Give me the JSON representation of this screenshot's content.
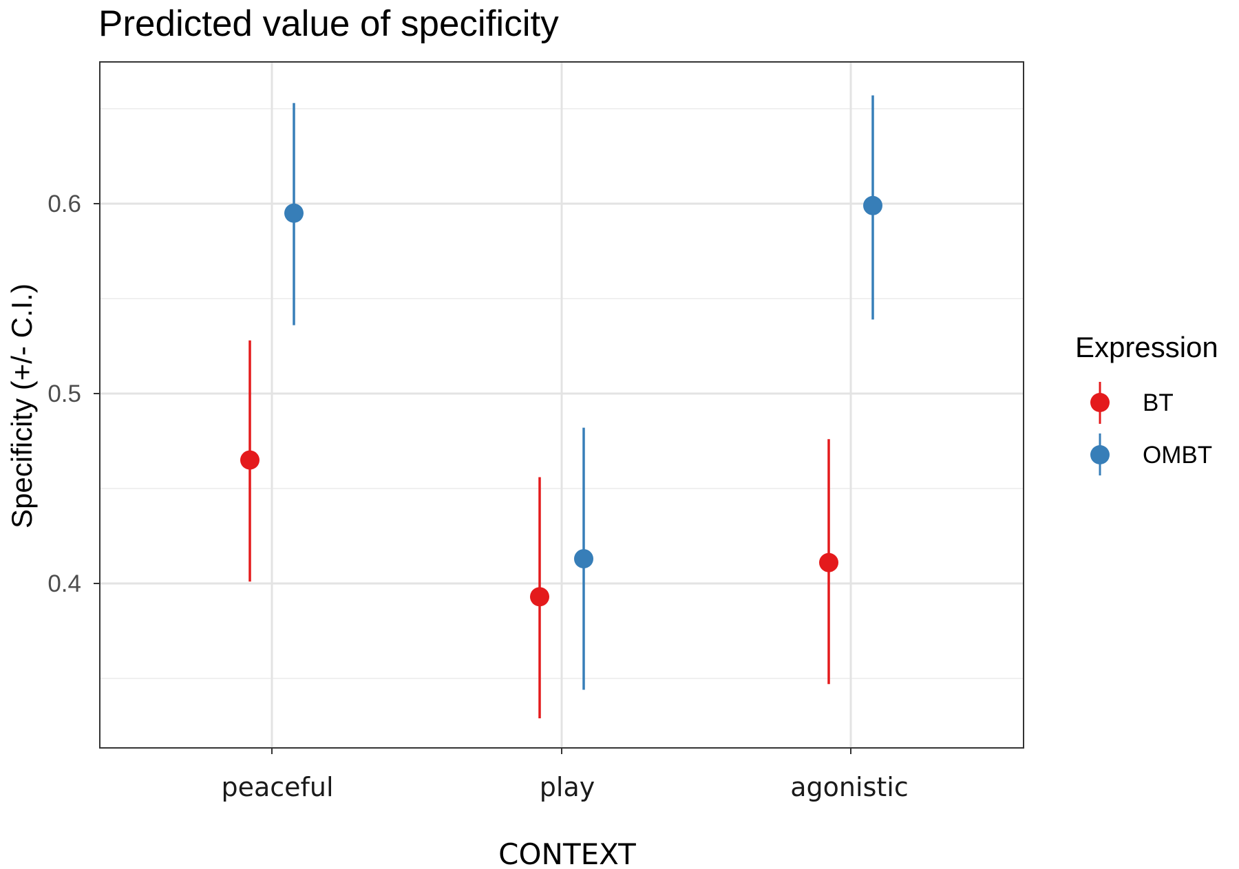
{
  "chart_data": {
    "type": "scatter",
    "title": "Predicted value of specificity",
    "xlabel": "CONTEXT",
    "ylabel": "Specificity (+/- C.I.)",
    "categories": [
      "peaceful",
      "play",
      "agonistic"
    ],
    "ylim": [
      0.32,
      0.68
    ],
    "yticks": [
      "0.4",
      "0.5",
      "0.6"
    ],
    "grid": true,
    "legend": {
      "title": "Expression",
      "position": "right"
    },
    "series": [
      {
        "name": "BT",
        "color": "#e41a1c",
        "points": [
          {
            "category": "peaceful",
            "y": 0.465,
            "lower": 0.401,
            "upper": 0.528
          },
          {
            "category": "play",
            "y": 0.393,
            "lower": 0.329,
            "upper": 0.456
          },
          {
            "category": "agonistic",
            "y": 0.411,
            "lower": 0.347,
            "upper": 0.476
          }
        ]
      },
      {
        "name": "OMBT",
        "color": "#377eb8",
        "points": [
          {
            "category": "peaceful",
            "y": 0.595,
            "lower": 0.536,
            "upper": 0.653
          },
          {
            "category": "play",
            "y": 0.413,
            "lower": 0.344,
            "upper": 0.482
          },
          {
            "category": "agonistic",
            "y": 0.599,
            "lower": 0.539,
            "upper": 0.657
          }
        ]
      }
    ]
  }
}
